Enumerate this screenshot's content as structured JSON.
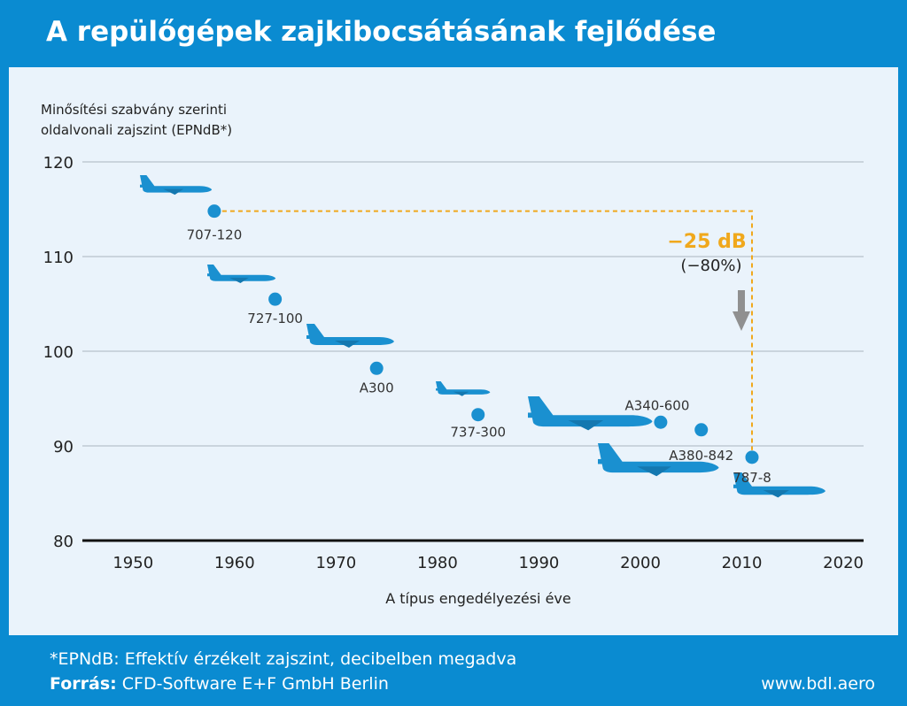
{
  "header": {
    "title": "A repülőgépek zajkibocsátásának fejlődése"
  },
  "chart_data": {
    "type": "scatter",
    "title": "",
    "ylabel_lines": [
      "Minősítési szabvány szerinti",
      "oldalvonali zajszint (EPNdB*)"
    ],
    "xlabel": "A típus engedélyezési éve",
    "xlim": [
      1945,
      2022
    ],
    "ylim": [
      80,
      120
    ],
    "xticks": [
      1950,
      1960,
      1970,
      1980,
      1990,
      2000,
      2010,
      2020
    ],
    "yticks": [
      80,
      90,
      100,
      110,
      120
    ],
    "grid": true,
    "point_color": "#1a90d0",
    "points": [
      {
        "label": "707-120",
        "x": 1958,
        "y": 114.8
      },
      {
        "label": "727-100",
        "x": 1964,
        "y": 105.5
      },
      {
        "label": "A300",
        "x": 1974,
        "y": 98.2
      },
      {
        "label": "737-300",
        "x": 1984,
        "y": 93.3
      },
      {
        "label": "A340-600",
        "x": 2002,
        "y": 92.5
      },
      {
        "label": "A380-842",
        "x": 2006,
        "y": 91.7
      },
      {
        "label": "787-8",
        "x": 2011,
        "y": 88.8
      }
    ],
    "annotation": {
      "value": "−25 dB",
      "percent": "(−80%)",
      "color": "#f0a81c",
      "from": {
        "x": 1958,
        "y": 114.8
      },
      "to": {
        "x": 2011,
        "y": 88.8
      }
    }
  },
  "footer": {
    "footnote": "*EPNdB: Effektív érzékelt zajszint, decibelben megadva",
    "source_label": "Forrás:",
    "source_text": " CFD-Software E+F GmbH Berlin",
    "website": "www.bdl.aero"
  },
  "icons": [
    "airplane-icon",
    "arrow-down-icon"
  ]
}
